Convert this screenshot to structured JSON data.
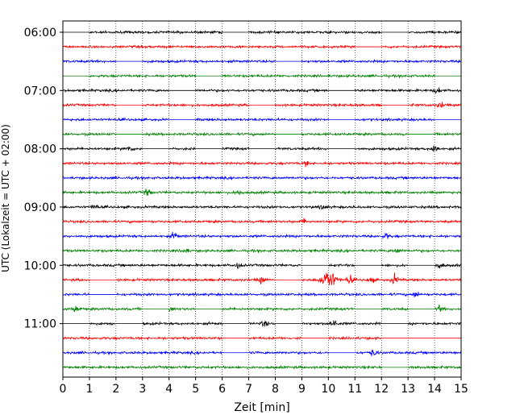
{
  "chart_data": {
    "type": "line",
    "title": "",
    "xlabel": "Zeit  [min]",
    "ylabel": "UTC (Lokalzeit = UTC + 02:00)",
    "xlim": [
      0,
      15
    ],
    "x_ticks": [
      0,
      1,
      2,
      3,
      4,
      5,
      6,
      7,
      8,
      9,
      10,
      11,
      12,
      13,
      14,
      15
    ],
    "y_ticks": [
      "06:00",
      "07:00",
      "08:00",
      "09:00",
      "10:00",
      "11:00"
    ],
    "y_tick_rows": [
      0,
      4,
      8,
      12,
      16,
      20
    ],
    "grid": "vertical dotted lines at each minute",
    "row_minutes": 15,
    "row_colors": [
      "#000000",
      "#ff0000",
      "#0000ff",
      "#008000"
    ],
    "rows": [
      {
        "start": "06:00",
        "color": "#000000",
        "gaps": [
          [
            0,
            1
          ],
          [
            6,
            7
          ],
          [
            12,
            13
          ]
        ],
        "bursts": []
      },
      {
        "start": "06:15",
        "color": "#ff0000",
        "gaps": [
          [
            11,
            12
          ]
        ],
        "bursts": []
      },
      {
        "start": "06:30",
        "color": "#0000ff",
        "gaps": [
          [
            2,
            3
          ],
          [
            8,
            9
          ]
        ],
        "bursts": []
      },
      {
        "start": "06:45",
        "color": "#008000",
        "gaps": [
          [
            0,
            1
          ],
          [
            5,
            6
          ],
          [
            14,
            15
          ]
        ],
        "bursts": []
      },
      {
        "start": "07:00",
        "color": "#000000",
        "gaps": [
          [
            4,
            5
          ],
          [
            10,
            11
          ]
        ],
        "bursts": [
          [
            14.1,
            1.6
          ]
        ]
      },
      {
        "start": "07:15",
        "color": "#ff0000",
        "gaps": [
          [
            2,
            3
          ],
          [
            7,
            8
          ],
          [
            12,
            13
          ]
        ],
        "bursts": [
          [
            14.2,
            1.5
          ]
        ]
      },
      {
        "start": "07:30",
        "color": "#0000ff",
        "gaps": [
          [
            4,
            5
          ],
          [
            10,
            11
          ],
          [
            14,
            15
          ]
        ],
        "bursts": []
      },
      {
        "start": "07:45",
        "color": "#008000",
        "gaps": [
          [
            2,
            3
          ],
          [
            8,
            9
          ],
          [
            13,
            14
          ]
        ],
        "bursts": []
      },
      {
        "start": "08:00",
        "color": "#000000",
        "gaps": [
          [
            3,
            4
          ],
          [
            5,
            6
          ],
          [
            7,
            8
          ],
          [
            10,
            11
          ]
        ],
        "bursts": [
          [
            14.0,
            2.4
          ],
          [
            2.5,
            1.4
          ]
        ]
      },
      {
        "start": "08:15",
        "color": "#ff0000",
        "gaps": [],
        "bursts": [
          [
            9.2,
            1.3
          ]
        ]
      },
      {
        "start": "08:30",
        "color": "#0000ff",
        "gaps": [],
        "bursts": []
      },
      {
        "start": "08:45",
        "color": "#008000",
        "gaps": [],
        "bursts": [
          [
            3.2,
            1.7
          ],
          [
            6.6,
            1.4
          ]
        ]
      },
      {
        "start": "09:00",
        "color": "#000000",
        "gaps": [],
        "bursts": [
          [
            1.2,
            1.4
          ],
          [
            9.8,
            1.3
          ]
        ]
      },
      {
        "start": "09:15",
        "color": "#ff0000",
        "gaps": [],
        "bursts": [
          [
            9.1,
            1.3
          ]
        ]
      },
      {
        "start": "09:30",
        "color": "#0000ff",
        "gaps": [],
        "bursts": [
          [
            4.2,
            1.8
          ],
          [
            12.2,
            1.4
          ]
        ]
      },
      {
        "start": "09:45",
        "color": "#008000",
        "gaps": [],
        "bursts": [
          [
            4.6,
            1.3
          ],
          [
            12.6,
            1.4
          ]
        ]
      },
      {
        "start": "10:00",
        "color": "#000000",
        "gaps": [
          [
            9,
            10
          ],
          [
            11,
            12
          ],
          [
            13,
            14
          ]
        ],
        "bursts": [
          [
            6.6,
            1.4
          ],
          [
            14.2,
            1.5
          ]
        ]
      },
      {
        "start": "10:15",
        "color": "#ff0000",
        "gaps": [
          [
            1,
            2
          ],
          [
            8,
            9
          ]
        ],
        "bursts": [
          [
            10.0,
            5.2
          ],
          [
            10.8,
            2.4
          ],
          [
            11.6,
            1.5
          ],
          [
            12.5,
            2.6
          ],
          [
            7.5,
            1.8
          ]
        ]
      },
      {
        "start": "10:30",
        "color": "#0000ff",
        "gaps": [
          [
            1,
            2
          ]
        ],
        "bursts": [
          [
            13.3,
            1.4
          ]
        ]
      },
      {
        "start": "10:45",
        "color": "#008000",
        "gaps": [
          [
            3,
            4
          ],
          [
            5,
            6
          ],
          [
            11,
            12
          ],
          [
            13,
            14
          ]
        ],
        "bursts": [
          [
            0.5,
            1.8
          ],
          [
            4.0,
            2.0
          ],
          [
            14.2,
            1.6
          ]
        ]
      },
      {
        "start": "11:00",
        "color": "#000000",
        "gaps": [
          [
            0,
            1
          ],
          [
            2,
            3
          ],
          [
            6,
            7
          ],
          [
            8,
            9
          ],
          [
            12,
            13
          ]
        ],
        "bursts": [
          [
            10.2,
            2.3
          ],
          [
            7.6,
            1.6
          ]
        ]
      },
      {
        "start": "11:15",
        "color": "#ff0000",
        "gaps": [
          [
            6,
            7
          ],
          [
            9,
            10
          ],
          [
            12,
            15
          ]
        ],
        "bursts": []
      },
      {
        "start": "11:30",
        "color": "#0000ff",
        "gaps": [
          [
            6,
            7
          ],
          [
            10,
            11
          ]
        ],
        "bursts": [
          [
            11.7,
            2.2
          ]
        ]
      },
      {
        "start": "11:45",
        "color": "#008000",
        "gaps": [
          [
            12,
            13
          ]
        ],
        "bursts": []
      }
    ]
  }
}
